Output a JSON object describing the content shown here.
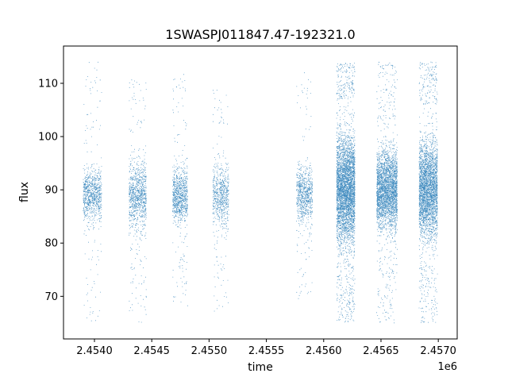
{
  "chart_data": {
    "type": "scatter",
    "title": "1SWASPJ011847.47-192321.0",
    "xlabel": "time",
    "ylabel": "flux",
    "x_offset_label": "1e6",
    "xlim": [
      2453730,
      2457165
    ],
    "ylim": [
      62,
      117
    ],
    "grid": false,
    "legend": "none",
    "x_ticks": [
      {
        "value": 2454000,
        "label": "2.4540"
      },
      {
        "value": 2454500,
        "label": "2.4545"
      },
      {
        "value": 2455000,
        "label": "2.4550"
      },
      {
        "value": 2455500,
        "label": "2.4555"
      },
      {
        "value": 2456000,
        "label": "2.4560"
      },
      {
        "value": 2456500,
        "label": "2.4565"
      },
      {
        "value": 2457000,
        "label": "2.4570"
      }
    ],
    "y_ticks": [
      {
        "value": 70,
        "label": "70"
      },
      {
        "value": 80,
        "label": "80"
      },
      {
        "value": 90,
        "label": "90"
      },
      {
        "value": 100,
        "label": "100"
      },
      {
        "value": 110,
        "label": "110"
      }
    ],
    "marker_color": "#1f77b4",
    "observing_seasons": [
      {
        "x_start": 2453900,
        "x_end": 2454060,
        "y_median": 89,
        "y_core": [
          81,
          98
        ],
        "y_extreme": [
          65,
          114
        ],
        "density": 900
      },
      {
        "x_start": 2454300,
        "x_end": 2454450,
        "y_median": 89,
        "y_core": [
          80,
          101
        ],
        "y_extreme": [
          65,
          111
        ],
        "density": 1000
      },
      {
        "x_start": 2454680,
        "x_end": 2454810,
        "y_median": 89,
        "y_core": [
          81,
          98
        ],
        "y_extreme": [
          68,
          112
        ],
        "density": 900
      },
      {
        "x_start": 2455030,
        "x_end": 2455170,
        "y_median": 89,
        "y_core": [
          83,
          102
        ],
        "y_extreme": [
          67,
          109
        ],
        "density": 700
      },
      {
        "x_start": 2455760,
        "x_end": 2455900,
        "y_median": 89,
        "y_core": [
          82,
          99
        ],
        "y_extreme": [
          69,
          112
        ],
        "density": 800
      },
      {
        "x_start": 2456110,
        "x_end": 2456270,
        "y_median": 90,
        "y_core": [
          74,
          107
        ],
        "y_extreme": [
          65,
          114
        ],
        "density": 4200
      },
      {
        "x_start": 2456460,
        "x_end": 2456640,
        "y_median": 90,
        "y_core": [
          79,
          103
        ],
        "y_extreme": [
          65,
          114
        ],
        "density": 3000
      },
      {
        "x_start": 2456830,
        "x_end": 2456990,
        "y_median": 90,
        "y_core": [
          76,
          106
        ],
        "y_extreme": [
          65,
          114
        ],
        "density": 3200
      }
    ]
  }
}
